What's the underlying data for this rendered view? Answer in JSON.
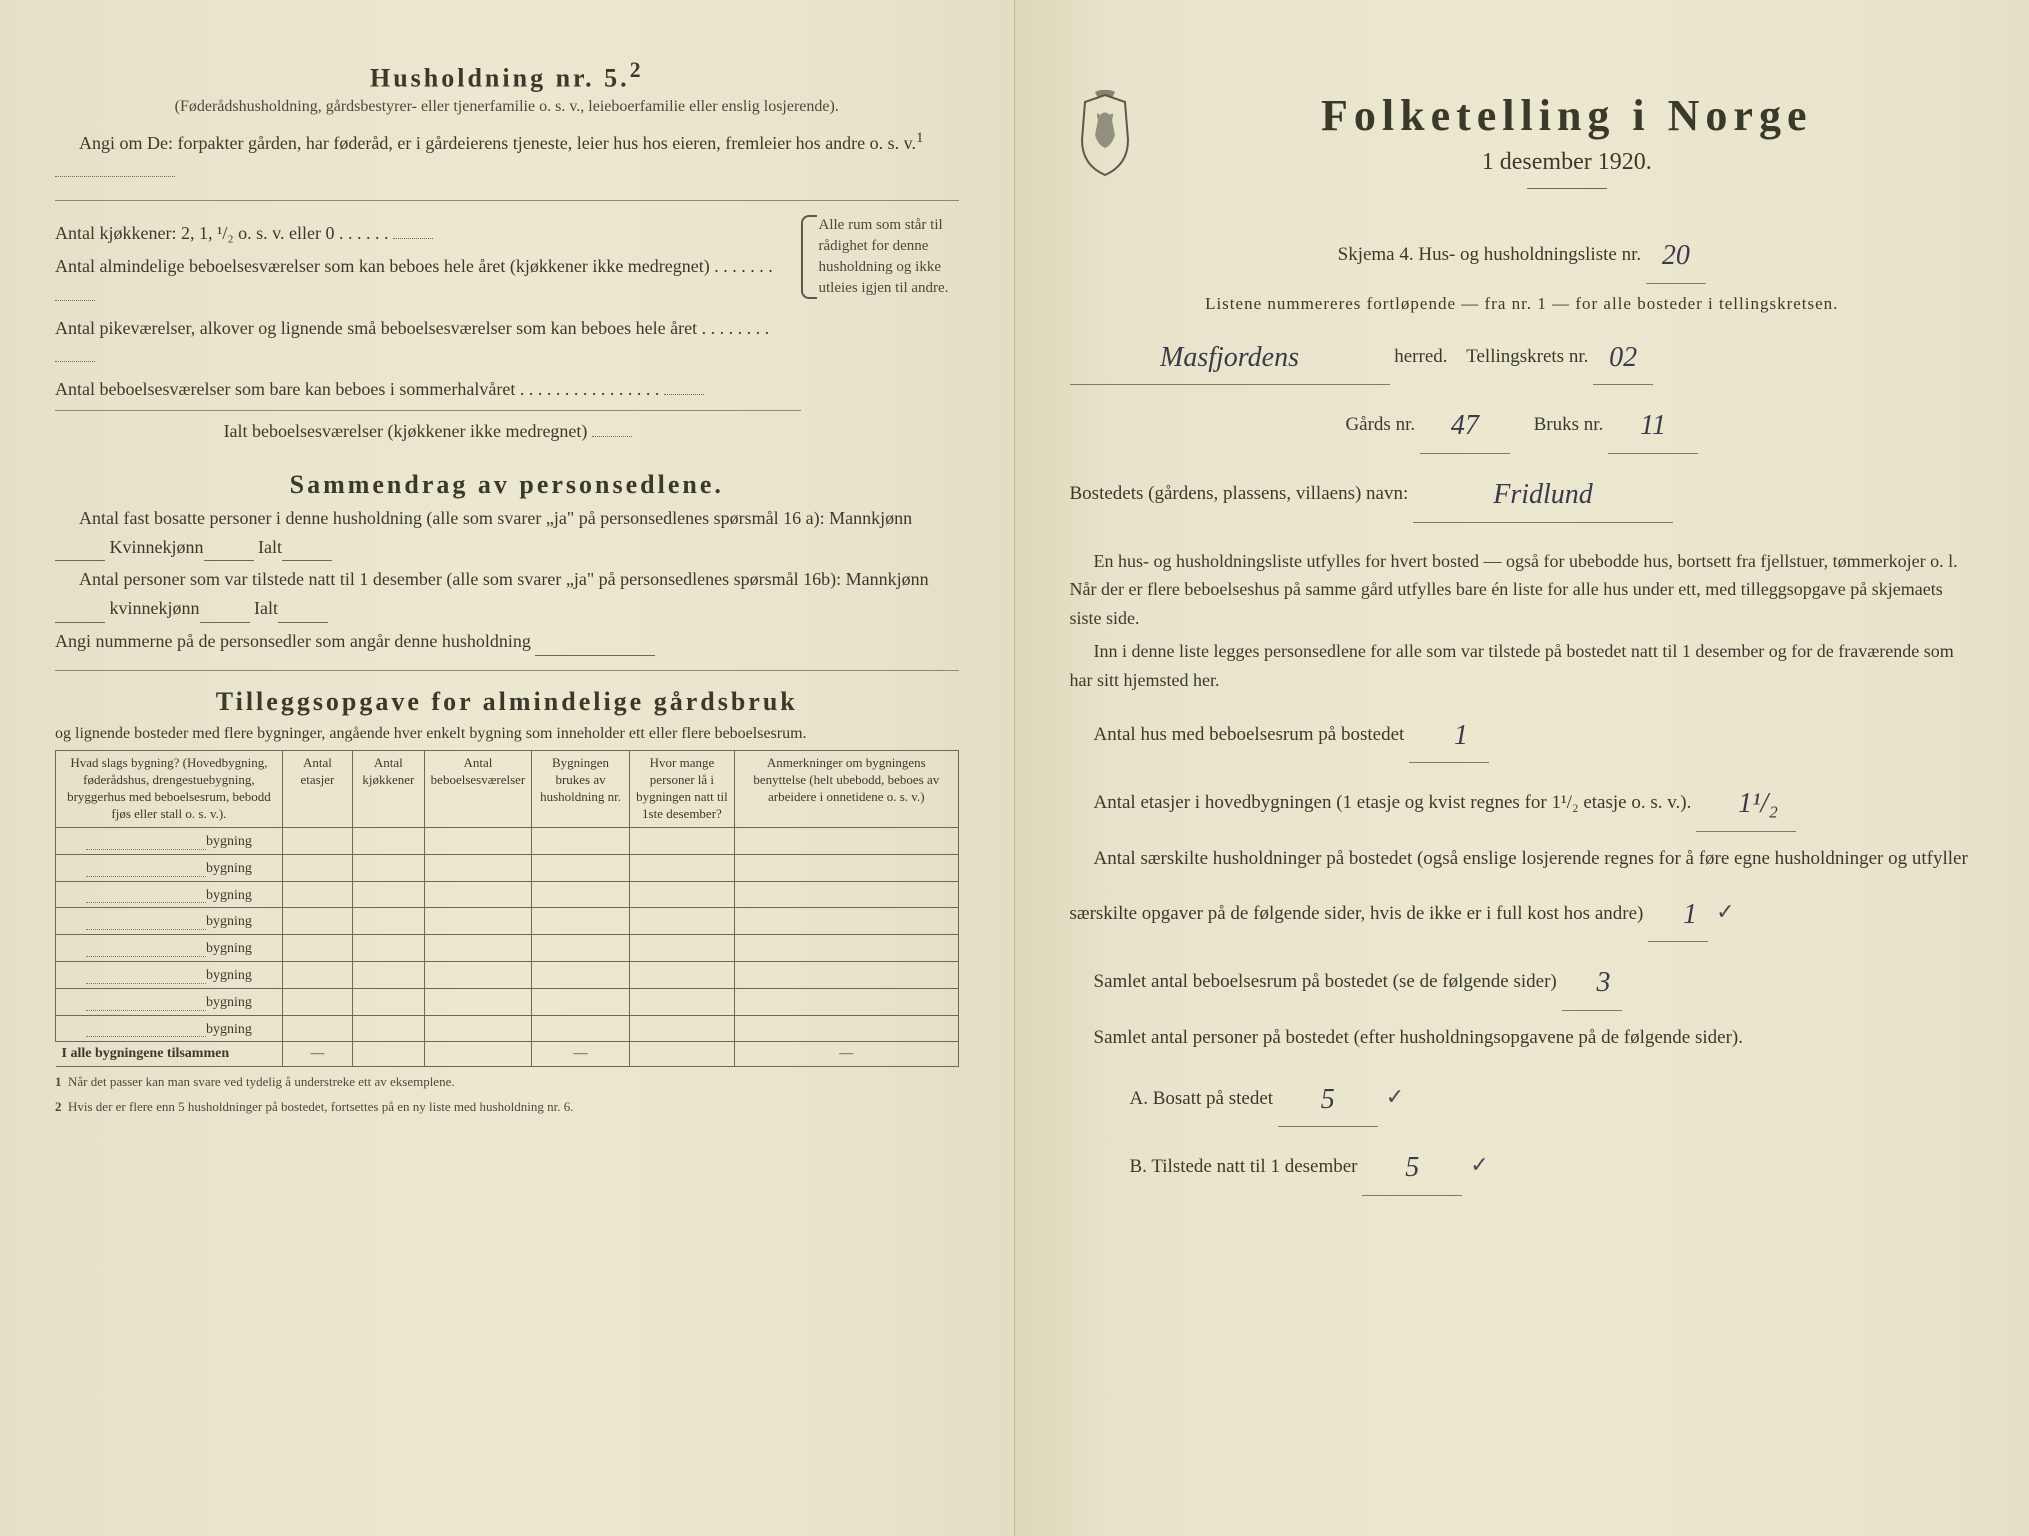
{
  "left": {
    "household_heading": "Husholdning nr. 5.",
    "household_sup": "2",
    "household_sub": "(Føderådshusholdning, gårdsbestyrer- eller tjenerfamilie o. s. v., leieboerfamilie eller enslig losjerende).",
    "angi_line": "Angi om De: forpakter gården, har føderåd, er i gårdeierens tjeneste, leier hus hos eieren, fremleier hos andre o. s. v.",
    "angi_sup": "1",
    "kitchens_label": "Antal kjøkkener: 2, 1, ¹/₂ o. s. v. eller 0",
    "rooms_all_year": "Antal almindelige beboelsesværelser som kan beboes hele året (kjøkkener ikke medregnet)",
    "maid_rooms": "Antal pikeværelser, alkover og lignende små beboelsesværelser som kan beboes hele året",
    "summer_rooms": "Antal beboelsesværelser som bare kan beboes i sommerhalvåret",
    "total_rooms": "Ialt beboelsesværelser (kjøkkener ikke medregnet)",
    "brace_text": "Alle rum som står til rådighet for denne husholdning og ikke utleies igjen til andre.",
    "summary_heading": "Sammendrag av personsedlene.",
    "summary_line1": "Antal fast bosatte personer i denne husholdning (alle som svarer „ja\" på personsedlenes spørsmål 16 a): Mannkjønn",
    "kvinnekjonn": "Kvinnekjønn",
    "ialt": "Ialt",
    "summary_line2": "Antal personer som var tilstede natt til 1 desember (alle som svarer „ja\" på personsedlenes spørsmål 16b): Mannkjønn",
    "kvinnekjonn2": "kvinnekjønn",
    "angi_nummerne": "Angi nummerne på de personsedler som angår denne husholdning",
    "tillegg_heading": "Tilleggsopgave for almindelige gårdsbruk",
    "tillegg_sub": "og lignende bosteder med flere bygninger, angående hver enkelt bygning som inneholder ett eller flere beboelsesrum.",
    "table": {
      "col1": "Hvad slags bygning?\n(Hovedbygning, føderådshus, drengestuebygning, bryggerhus med beboelsesrum, bebodd fjøs eller stall o. s. v.).",
      "col2": "Antal etasjer",
      "col3": "Antal kjøkkener",
      "col4": "Antal beboelsesværelser",
      "col5": "Bygningen brukes av husholdning nr.",
      "col6": "Hvor mange personer lå i bygningen natt til 1ste desember?",
      "col7": "Anmerkninger om bygningens benyttelse (helt ubebodd, beboes av arbeidere i onnetidene o. s. v.)",
      "row_label": "bygning",
      "total_row": "I alle bygningene tilsammen",
      "rows": 8
    },
    "footnote1_num": "1",
    "footnote1": "Når det passer kan man svare ved tydelig å understreke ett av eksemplene.",
    "footnote2_num": "2",
    "footnote2": "Hvis der er flere enn 5 husholdninger på bostedet, fortsettes på en ny liste med husholdning nr. 6."
  },
  "right": {
    "main_title": "Folketelling i Norge",
    "date": "1 desember 1920.",
    "skjema_line": "Skjema 4. Hus- og husholdningsliste nr.",
    "skjema_value": "20",
    "listene_line": "Listene nummereres fortløpende — fra nr. 1 — for alle bosteder i tellingskretsen.",
    "herred_value": "Masfjordens",
    "herred_label": "herred.",
    "tellingskrets_label": "Tellingskrets nr.",
    "tellingskrets_value": "02",
    "gards_label": "Gårds nr.",
    "gards_value": "47",
    "bruks_label": "Bruks nr.",
    "bruks_value": "11",
    "bosted_label": "Bostedets (gårdens, plassens, villaens) navn:",
    "bosted_value": "Fridlund",
    "para1": "En hus- og husholdningsliste utfylles for hvert bosted — også for ubebodde hus, bortsett fra fjellstuer, tømmerkojer o. l. Når der er flere beboelseshus på samme gård utfylles bare én liste for alle hus under ett, med tilleggsopgave på skjemaets siste side.",
    "para2": "Inn i denne liste legges personsedlene for alle som var tilstede på bostedet natt til 1 desember og for de fraværende som har sitt hjemsted her.",
    "antal_hus_label": "Antal hus med beboelsesrum på bostedet",
    "antal_hus_value": "1",
    "etasjer_label": "Antal etasjer i hovedbygningen (1 etasje og kvist regnes for 1¹/₂ etasje o. s. v.).",
    "etasjer_value": "1¹/₂",
    "saerskilte_label": "Antal særskilte husholdninger på bostedet (også enslige losjerende regnes for å føre egne husholdninger og utfyller særskilte opgaver på de følgende sider, hvis de ikke er i full kost hos andre)",
    "saerskilte_value": "1",
    "samlet_rum_label": "Samlet antal beboelsesrum på bostedet (se de følgende sider)",
    "samlet_rum_value": "3",
    "samlet_personer_label": "Samlet antal personer på bostedet (efter husholdningsopgavene på de følgende sider).",
    "bosatt_label": "A. Bosatt på stedet",
    "bosatt_value": "5",
    "tilstede_label": "B. Tilstede natt til 1 desember",
    "tilstede_value": "5",
    "checkmark": "✓"
  }
}
